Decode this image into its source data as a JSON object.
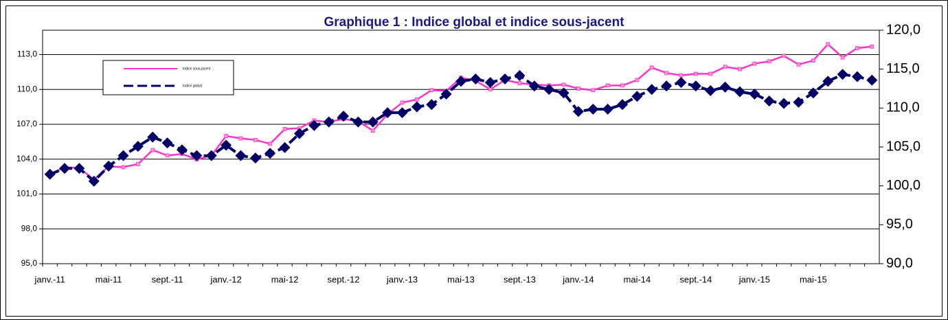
{
  "chart_data": {
    "type": "line",
    "title": "Graphique 1 : Indice global et indice sous-jacent",
    "categories": [
      "janv.-11",
      null,
      null,
      null,
      "mai-11",
      null,
      null,
      null,
      "sept.-11",
      null,
      null,
      null,
      "janv.-12",
      null,
      null,
      null,
      "mai-12",
      null,
      null,
      null,
      "sept.-12",
      null,
      null,
      null,
      "janv.-13",
      null,
      null,
      null,
      "mai-13",
      null,
      null,
      null,
      "sept.-13",
      null,
      null,
      null,
      "janv.-14",
      null,
      null,
      null,
      "mai-14",
      null,
      null,
      null,
      "sept.-14",
      null,
      null,
      null,
      "janv.-15",
      null,
      null,
      null,
      "mai-15",
      null,
      null,
      null,
      null
    ],
    "series": [
      {
        "name": "Indice sous-jacent",
        "color": "#ff33cc",
        "axis": "y2",
        "values": [
          101.5,
          102.4,
          102.3,
          100.8,
          102.5,
          102.4,
          102.8,
          104.6,
          103.9,
          104.1,
          103.4,
          103.9,
          106.4,
          106.1,
          105.9,
          105.4,
          107.3,
          107.4,
          108.4,
          108.2,
          108.6,
          108.3,
          107.1,
          109.2,
          110.7,
          111.1,
          112.3,
          112.2,
          113.9,
          113.5,
          112.4,
          113.6,
          113.2,
          113.0,
          112.9,
          113.0,
          112.5,
          112.3,
          112.9,
          112.9,
          113.6,
          115.2,
          114.5,
          114.2,
          114.4,
          114.4,
          115.3,
          115.0,
          115.7,
          116.0,
          116.7,
          115.6,
          116.1,
          118.2,
          116.5,
          117.7,
          117.9
        ]
      },
      {
        "name": "Indice global",
        "color": "#000066",
        "values": [
          102.7,
          103.2,
          103.2,
          102.1,
          103.4,
          104.3,
          105.1,
          105.9,
          105.4,
          104.8,
          104.3,
          104.3,
          105.2,
          104.3,
          104.1,
          104.5,
          105.0,
          106.2,
          106.9,
          107.2,
          107.7,
          107.2,
          107.2,
          108.0,
          108.0,
          108.5,
          108.7,
          109.6,
          110.7,
          110.9,
          110.6,
          110.9,
          111.2,
          110.3,
          110.0,
          109.7,
          108.1,
          108.3,
          108.3,
          108.7,
          109.4,
          110.0,
          110.3,
          110.6,
          110.3,
          109.9,
          110.2,
          109.8,
          109.6,
          109.0,
          108.8,
          108.9,
          109.7,
          110.7,
          111.3,
          111.1,
          110.8
        ]
      }
    ],
    "ylim": [
      95,
      115.1
    ],
    "yticks": [
      {
        "value": 95,
        "label": "95,0"
      },
      {
        "value": 98,
        "label": "98,0"
      },
      {
        "value": 101,
        "label": "101,0"
      },
      {
        "value": 104,
        "label": "104,0"
      },
      {
        "value": 107,
        "label": "107,0"
      },
      {
        "value": 110,
        "label": "110,0"
      },
      {
        "value": 113,
        "label": "113,0"
      }
    ],
    "y2lim": [
      90,
      120
    ],
    "y2ticks": [
      {
        "value": 90,
        "label": "90,0"
      },
      {
        "value": 95,
        "label": "95,0"
      },
      {
        "value": 100,
        "label": "100,0"
      },
      {
        "value": 105,
        "label": "105,0"
      },
      {
        "value": 110,
        "label": "110,0"
      },
      {
        "value": 115,
        "label": "115,0"
      },
      {
        "value": 120,
        "label": "120,0"
      }
    ],
    "grid": true,
    "legend": "upper left"
  }
}
